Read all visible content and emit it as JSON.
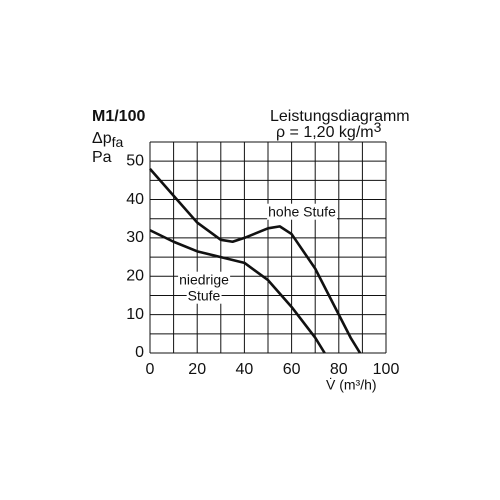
{
  "chart_data": {
    "type": "line",
    "title": "M1/100",
    "y_label": {
      "symbol": "Δp",
      "subscript": "fa",
      "unit": "Pa"
    },
    "subtitle": "Leistungsdiagramm",
    "density": {
      "text": "ρ = 1,20 kg/m",
      "superscript": "3"
    },
    "x_label": "V̇ (m³/h)",
    "xlim": [
      0,
      100
    ],
    "ylim": [
      0,
      55
    ],
    "xticks": [
      0,
      20,
      40,
      60,
      80,
      100
    ],
    "yticks": [
      0,
      10,
      20,
      30,
      40,
      50
    ],
    "xgrid": [
      0,
      10,
      20,
      30,
      40,
      50,
      60,
      70,
      80,
      90,
      100
    ],
    "ygrid": [
      0,
      5,
      10,
      15,
      20,
      25,
      30,
      35,
      40,
      45,
      50,
      55
    ],
    "grid": true,
    "series": [
      {
        "label_lines": [
          "hohe Stufe"
        ],
        "color": "#111111",
        "x": [
          0,
          10,
          20,
          30,
          35,
          40,
          50,
          55,
          60,
          70,
          80,
          85,
          89
        ],
        "values": [
          48,
          41,
          34,
          29.5,
          29,
          30,
          32.5,
          33,
          31,
          22,
          10,
          4,
          0
        ]
      },
      {
        "label_lines": [
          "niedrige",
          "Stufe"
        ],
        "color": "#111111",
        "x": [
          0,
          10,
          20,
          30,
          40,
          50,
          60,
          70,
          74
        ],
        "values": [
          32,
          29,
          26.5,
          25,
          23.5,
          19,
          12,
          4,
          0
        ]
      }
    ]
  }
}
